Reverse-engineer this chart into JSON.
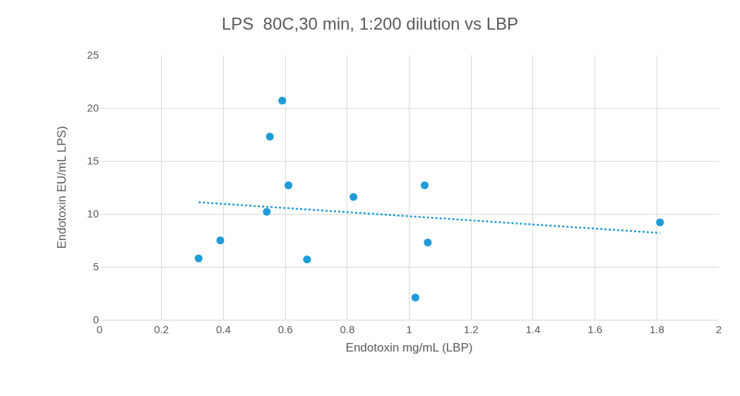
{
  "chart_data": {
    "type": "scatter",
    "title": "LPS  80C,30 min, 1:200 dilution vs LBP",
    "xlabel": "Endotoxin mg/mL (LBP)",
    "ylabel": "Endotoxin EU/mL LPS)",
    "x": [
      0.32,
      0.39,
      0.54,
      0.55,
      0.59,
      0.61,
      0.67,
      0.82,
      1.02,
      1.05,
      1.06,
      1.81
    ],
    "series": [
      {
        "color": "#1f9bd7",
        "marker": "circle",
        "values": [
          5.8,
          7.5,
          10.2,
          17.3,
          20.7,
          12.7,
          5.7,
          11.6,
          2.1,
          12.7,
          7.3,
          9.2
        ]
      },
      {
        "type": "line",
        "color": "#1f9bd7",
        "line_style": "dotted",
        "marker": "none",
        "x": [
          0.32,
          1.81
        ],
        "values": [
          11.1,
          8.2
        ]
      }
    ],
    "xlim": [
      0,
      2
    ],
    "xticks": [
      0,
      0.2,
      0.4,
      0.6,
      0.8,
      1,
      1.2,
      1.4,
      1.6,
      1.8,
      2
    ],
    "ylim": [
      0,
      25
    ],
    "yticks": [
      0,
      5,
      10,
      15,
      20,
      25
    ],
    "grid": true
  }
}
